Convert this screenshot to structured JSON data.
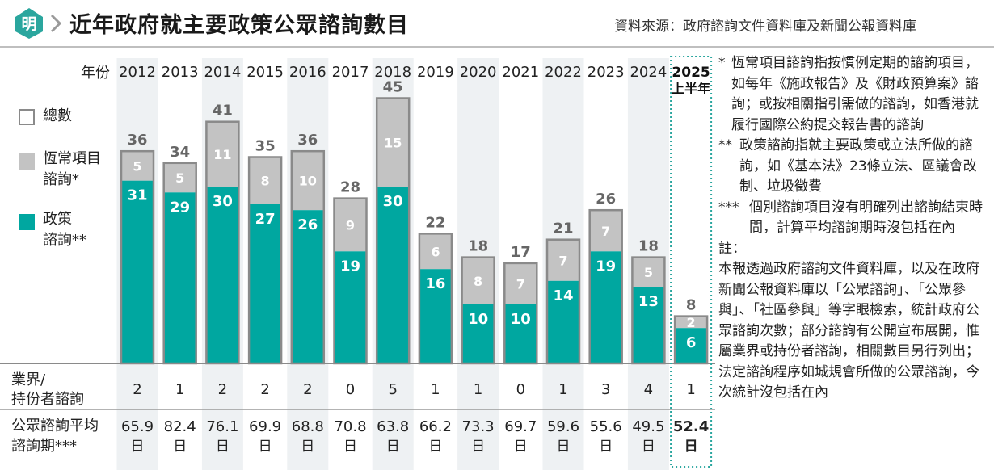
{
  "header": {
    "logo_char": "明",
    "title": "近年政府就主要政策公眾諮詢數目",
    "source": "資料來源：政府諮詢文件資料庫及新聞公報資料庫"
  },
  "legend": {
    "total": "總數",
    "routine_line1": "恆常項目",
    "routine_line2": "諮詢*",
    "policy_line1": "政策",
    "policy_line2": "諮詢**"
  },
  "row_labels": {
    "year": "年份",
    "industry_line1": "業界/",
    "industry_line2": "持份者諮詢",
    "avg_line1": "公眾諮詢平均",
    "avg_line2": "諮詢期***"
  },
  "colors": {
    "policy": "#00a7a0",
    "routine": "#c3c3c3",
    "outline": "#8a8a8a",
    "column_band": "#eef1f3",
    "highlight": "#2aa69e"
  },
  "chart_data": {
    "type": "bar",
    "stacked": true,
    "categories": [
      "2012",
      "2013",
      "2014",
      "2015",
      "2016",
      "2017",
      "2018",
      "2019",
      "2020",
      "2021",
      "2022",
      "2023",
      "2024",
      "2025 上半年"
    ],
    "category_lines": [
      [
        "2012"
      ],
      [
        "2013"
      ],
      [
        "2014"
      ],
      [
        "2015"
      ],
      [
        "2016"
      ],
      [
        "2017"
      ],
      [
        "2018"
      ],
      [
        "2019"
      ],
      [
        "2020"
      ],
      [
        "2021"
      ],
      [
        "2022"
      ],
      [
        "2023"
      ],
      [
        "2024"
      ],
      [
        "2025",
        "上半年"
      ]
    ],
    "series": [
      {
        "name": "政策諮詢**",
        "values": [
          31,
          29,
          30,
          27,
          26,
          19,
          30,
          16,
          10,
          10,
          14,
          19,
          13,
          6
        ]
      },
      {
        "name": "恆常項目諮詢*",
        "values": [
          5,
          5,
          11,
          8,
          10,
          9,
          15,
          6,
          8,
          7,
          7,
          7,
          5,
          2
        ]
      }
    ],
    "totals": [
      36,
      34,
      41,
      35,
      36,
      28,
      45,
      22,
      18,
      17,
      21,
      26,
      18,
      8
    ],
    "industry_consultations": [
      2,
      1,
      2,
      2,
      2,
      0,
      5,
      1,
      1,
      0,
      1,
      3,
      4,
      1
    ],
    "avg_consultation_days": [
      "65.9",
      "82.4",
      "76.1",
      "69.9",
      "68.8",
      "70.8",
      "63.8",
      "66.2",
      "73.3",
      "69.7",
      "59.6",
      "55.6",
      "49.5",
      "52.4"
    ],
    "day_unit": "日",
    "highlight_last": true,
    "ylim": [
      0,
      45
    ]
  },
  "notes": {
    "n1_mark": "*",
    "n1_text": "恆常項目諮詢指按慣例定期的諮詢項目，如每年《施政報告》及《財政預算案》諮詢；或按相關指引需做的諮詢，如香港就履行國際公約提交報告書的諮詢",
    "n2_mark": "**",
    "n2_text": "政策諮詢指就主要政策或立法所做的諮詢，如《基本法》23條立法、區議會改制、垃圾徵費",
    "n3_mark": "***",
    "n3_text": "個別諮詢項目沒有明確列出諮詢結束時間，計算平均諮詢期時沒包括在內",
    "label": "註：",
    "body": "本報透過政府諮詢文件資料庫，以及在政府新聞公報資料庫以「公眾諮詢」、「公眾參與」、「社區參與」等字眼檢索，統計政府公眾諮詢次數；部分諮詢有公開宣布展開，惟屬業界或持份者諮詢，相關數目另行列出；法定諮詢程序如城規會所做的公眾諮詢，今次統計沒包括在內"
  }
}
